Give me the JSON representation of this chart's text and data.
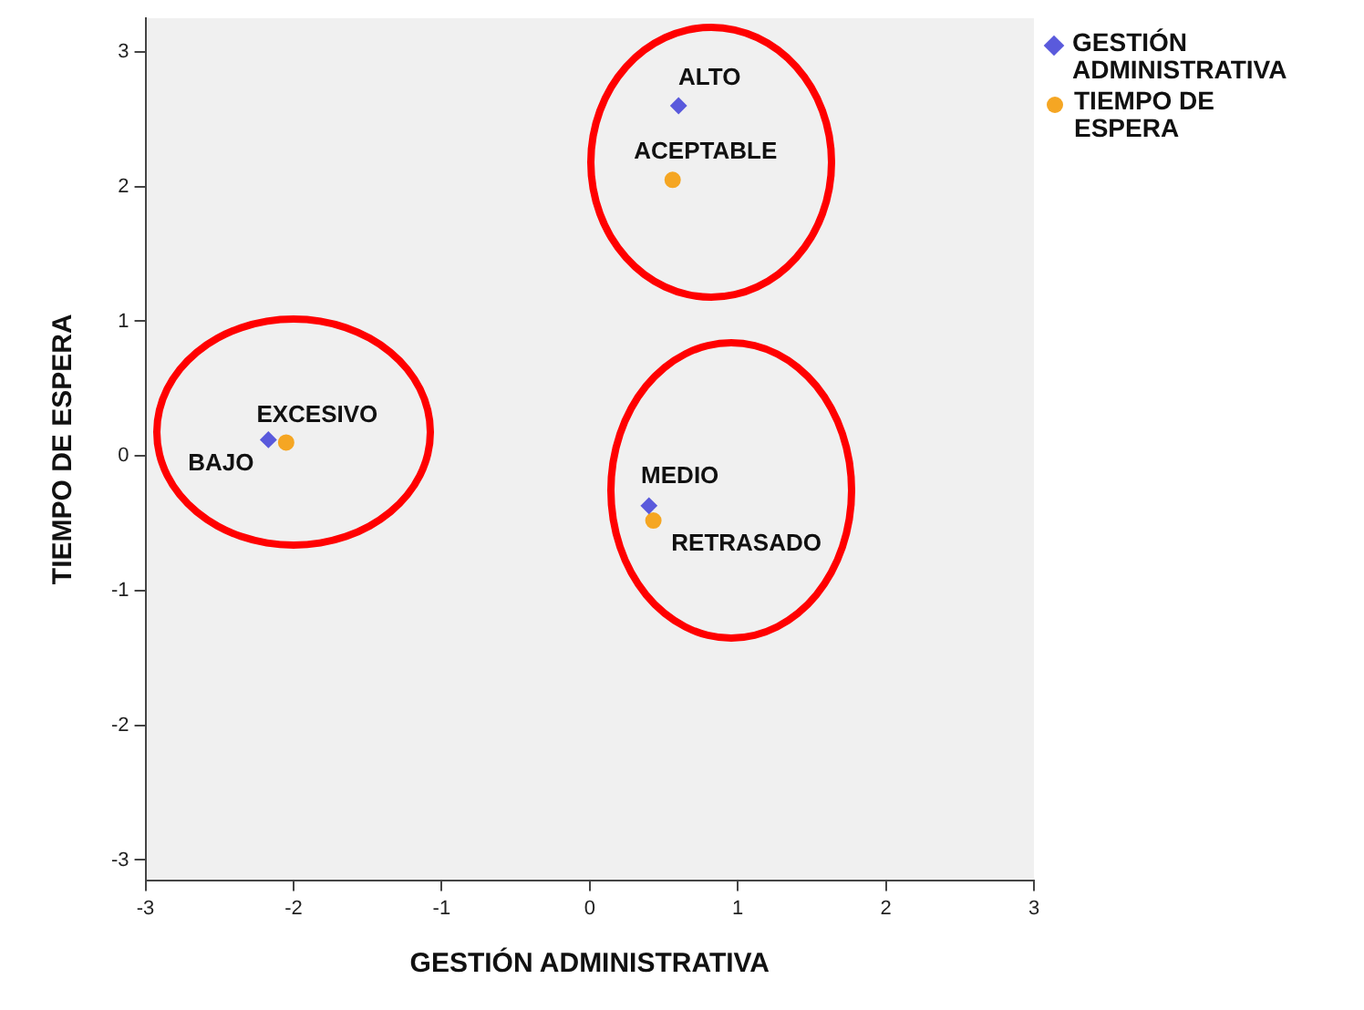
{
  "chart_data": {
    "type": "scatter",
    "xlabel": "GESTIÓN ADMINISTRATIVA",
    "ylabel": "TIEMPO DE ESPERA",
    "series": [
      {
        "name": "GESTIÓN ADMINISTRATIVA",
        "color": "#5a5adc",
        "marker": "diamond",
        "x": [
          0.6,
          0.4,
          -2.17
        ],
        "values": [
          2.6,
          -0.37,
          0.12
        ]
      },
      {
        "name": "TIEMPO DE ESPERA",
        "color": "#f5a623",
        "marker": "circle",
        "x": [
          0.56,
          0.43,
          -2.05
        ],
        "values": [
          2.05,
          -0.48,
          0.1
        ]
      }
    ],
    "annotations": [
      {
        "text": "ALTO",
        "x": 0.6,
        "y": 2.6
      },
      {
        "text": "MEDIO",
        "x": 0.4,
        "y": -0.37
      },
      {
        "text": "BAJO",
        "x": -2.17,
        "y": 0.12
      },
      {
        "text": "ACEPTABLE",
        "x": 0.56,
        "y": 2.05
      },
      {
        "text": "RETRASADO",
        "x": 0.43,
        "y": -0.48
      },
      {
        "text": "EXCESIVO",
        "x": -2.05,
        "y": 0.1
      }
    ],
    "xlim": [
      -3,
      3
    ],
    "xticks": [
      -3,
      -2,
      -1,
      0,
      1,
      2,
      3
    ],
    "ylim": [
      -3.15,
      3.25
    ],
    "yticks": [
      -3,
      -2,
      -1,
      0,
      1,
      2,
      3
    ],
    "grid": false,
    "legend": "top right"
  }
}
